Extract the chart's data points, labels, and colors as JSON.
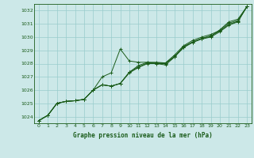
{
  "background_color": "#cce8e8",
  "plot_bg_color": "#cce8e8",
  "grid_color": "#99cccc",
  "line_color": "#1a5c1a",
  "title": "Graphe pression niveau de la mer (hPa)",
  "xlim": [
    -0.5,
    23.5
  ],
  "ylim": [
    1023.5,
    1032.5
  ],
  "xticks": [
    0,
    1,
    2,
    3,
    4,
    5,
    6,
    7,
    8,
    9,
    10,
    11,
    12,
    13,
    14,
    15,
    16,
    17,
    18,
    19,
    20,
    21,
    22,
    23
  ],
  "yticks": [
    1024,
    1025,
    1026,
    1027,
    1028,
    1029,
    1030,
    1031,
    1032
  ],
  "series": [
    [
      1023.7,
      1024.1,
      1025.0,
      1025.15,
      1025.2,
      1025.3,
      1026.0,
      1027.0,
      1027.3,
      1029.1,
      1028.2,
      1028.1,
      1028.1,
      1028.0,
      1027.9,
      1028.5,
      1029.3,
      1029.6,
      1029.9,
      1030.05,
      1030.55,
      1031.15,
      1031.35,
      1032.3
    ],
    [
      1023.7,
      1024.1,
      1025.0,
      1025.15,
      1025.2,
      1025.3,
      1026.0,
      1026.4,
      1026.3,
      1026.5,
      1027.35,
      1027.85,
      1028.1,
      1028.1,
      1028.05,
      1028.65,
      1029.35,
      1029.75,
      1030.0,
      1030.2,
      1030.5,
      1031.05,
      1031.25,
      1032.3
    ],
    [
      1023.7,
      1024.1,
      1025.0,
      1025.15,
      1025.2,
      1025.3,
      1026.0,
      1026.4,
      1026.3,
      1026.5,
      1027.35,
      1027.75,
      1028.05,
      1028.05,
      1028.05,
      1028.55,
      1029.25,
      1029.65,
      1029.9,
      1030.1,
      1030.45,
      1030.95,
      1031.2,
      1032.3
    ],
    [
      1023.7,
      1024.1,
      1025.0,
      1025.15,
      1025.2,
      1025.3,
      1026.0,
      1026.4,
      1026.3,
      1026.5,
      1027.3,
      1027.7,
      1028.0,
      1028.0,
      1028.0,
      1028.5,
      1029.2,
      1029.6,
      1029.85,
      1030.0,
      1030.4,
      1030.9,
      1031.15,
      1032.3
    ]
  ]
}
